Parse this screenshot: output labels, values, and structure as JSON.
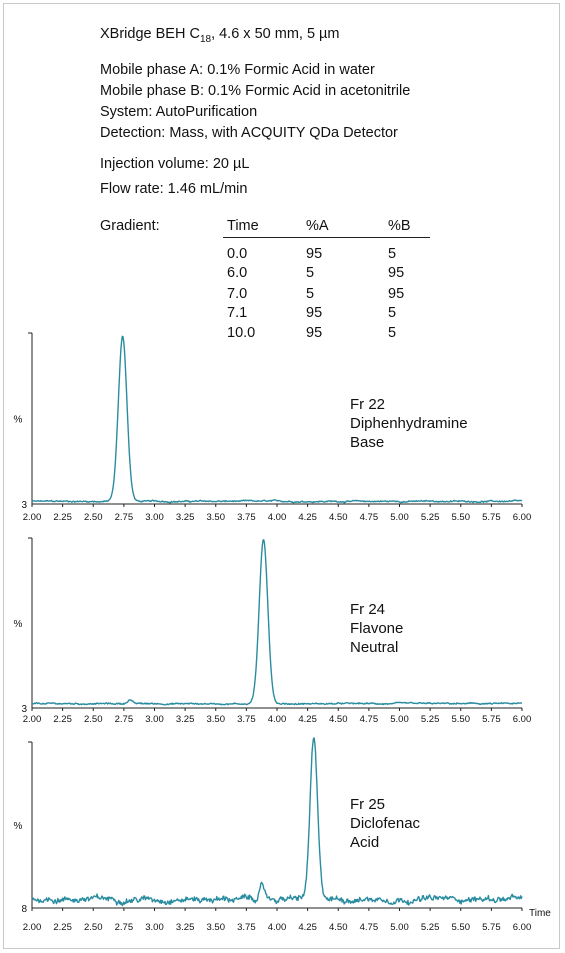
{
  "method": {
    "column_prefix": "XBridge BEH C",
    "column_subscript": "18",
    "column_suffix": ", 4.6 x 50 mm, 5 µm",
    "mobile_phase_a": "Mobile phase A: 0.1% Formic Acid in water",
    "mobile_phase_b": "Mobile phase B: 0.1% Formic Acid in acetonitrile",
    "system": "System: AutoPurification",
    "detection": "Detection: Mass, with ACQUITY QDa Detector",
    "injection_volume": "Injection volume: 20 µL",
    "flow_rate": "Flow rate: 1.46 mL/min"
  },
  "gradient": {
    "label": "Gradient:",
    "headers": [
      "Time",
      "%A",
      "%B"
    ],
    "rows": [
      [
        "0.0",
        "95",
        "5"
      ],
      [
        "6.0",
        "5",
        "95"
      ],
      [
        "7.0",
        "5",
        "95"
      ],
      [
        "7.1",
        "95",
        "5"
      ],
      [
        "10.0",
        "95",
        "5"
      ]
    ]
  },
  "colors": {
    "trace": "#2a8ca0",
    "axis": "#222222"
  },
  "chart_data": [
    {
      "type": "line",
      "x_range": [
        2.0,
        6.0
      ],
      "ticks": [
        "2.00",
        "2.25",
        "2.50",
        "2.75",
        "3.00",
        "3.25",
        "3.50",
        "3.75",
        "4.00",
        "4.25",
        "4.50",
        "4.75",
        "5.00",
        "5.25",
        "5.50",
        "5.75",
        "6.00"
      ],
      "ylabel": "%",
      "y_baseline_label": "3",
      "xlabel": "",
      "annotation": [
        "Fr 22",
        "Diphenhydramine",
        "Base"
      ],
      "peaks": [
        {
          "rt": 2.74,
          "height": 1.0,
          "width": 0.035
        }
      ],
      "baseline": 0.01,
      "noise": 0.006
    },
    {
      "type": "line",
      "x_range": [
        2.0,
        6.0
      ],
      "ticks": [
        "2.00",
        "2.25",
        "2.50",
        "2.75",
        "3.00",
        "3.25",
        "3.50",
        "3.75",
        "4.00",
        "4.25",
        "4.50",
        "4.75",
        "5.00",
        "5.25",
        "5.50",
        "5.75",
        "6.00"
      ],
      "ylabel": "%",
      "y_baseline_label": "3",
      "xlabel": "",
      "annotation": [
        "Fr 24",
        "Flavone",
        "Neutral"
      ],
      "peaks": [
        {
          "rt": 3.89,
          "height": 1.0,
          "width": 0.035
        },
        {
          "rt": 2.8,
          "height": 0.025,
          "width": 0.02
        }
      ],
      "baseline": 0.02,
      "noise": 0.006
    },
    {
      "type": "line",
      "x_range": [
        2.0,
        6.0
      ],
      "ticks": [
        "2.00",
        "2.25",
        "2.50",
        "2.75",
        "3.00",
        "3.25",
        "3.50",
        "3.75",
        "4.00",
        "4.25",
        "4.50",
        "4.75",
        "5.00",
        "5.25",
        "5.50",
        "5.75",
        "6.00"
      ],
      "ylabel": "%",
      "y_baseline_label": "8",
      "xlabel": "Time",
      "annotation": [
        "Fr 25",
        "Diclofenac",
        "Acid"
      ],
      "peaks": [
        {
          "rt": 4.3,
          "height": 1.0,
          "width": 0.03
        },
        {
          "rt": 3.88,
          "height": 0.08,
          "width": 0.02
        }
      ],
      "baseline": 0.05,
      "noise": 0.025
    }
  ]
}
